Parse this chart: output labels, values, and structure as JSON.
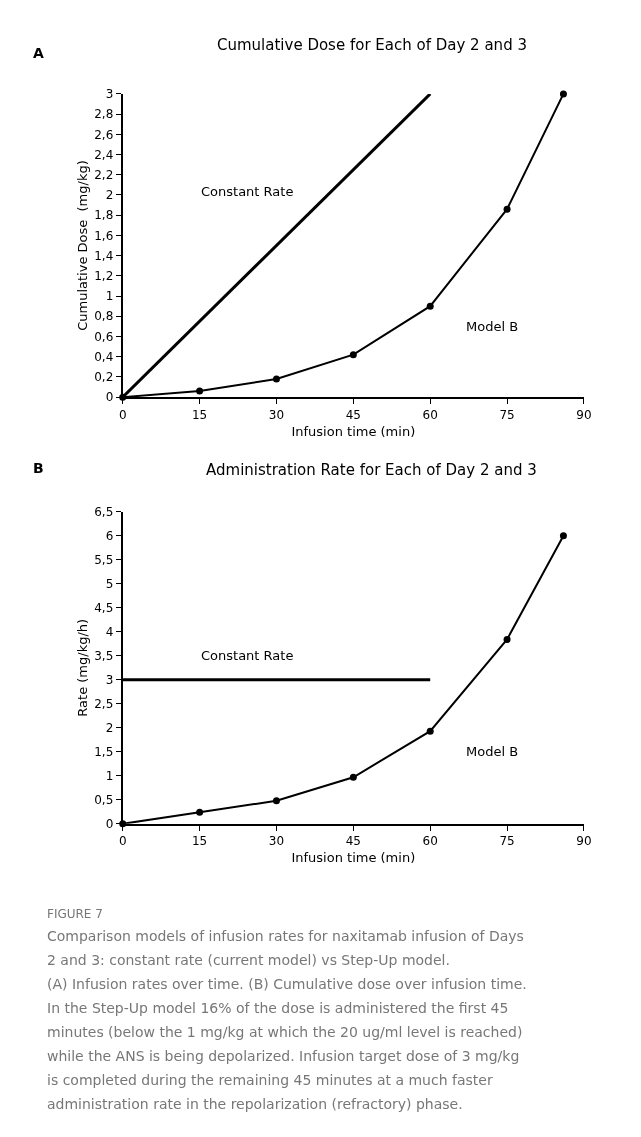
{
  "chart_data": [
    {
      "type": "line",
      "title": "Cumulative Dose for Each of Day 2 and 3",
      "xlabel": "Infusion time (min)",
      "ylabel": "Cumulative Dose  (mg/kg)",
      "annotations": [
        "A"
      ],
      "series": [
        {
          "name": "Constant Rate",
          "color": "#000000",
          "x": [
            0,
            60
          ],
          "values": [
            0,
            3
          ],
          "marker": "none"
        },
        {
          "name": "Model B",
          "color": "#000000",
          "x": [
            0,
            15,
            30,
            45,
            60,
            75,
            86
          ],
          "values": [
            0,
            0.06,
            0.18,
            0.42,
            0.9,
            1.86,
            3
          ],
          "marker": "circle"
        }
      ],
      "xlim": [
        0,
        90
      ],
      "xticks": [
        0,
        15,
        30,
        45,
        60,
        75,
        90
      ],
      "ylim": [
        0,
        3
      ],
      "yticks": [
        0,
        {
          "value": 0.2,
          "label": "0,2"
        },
        {
          "value": 0.4,
          "label": "0,4"
        },
        {
          "value": 0.6,
          "label": "0,6"
        },
        {
          "value": 0.8,
          "label": "0,8"
        },
        1,
        {
          "value": 1.2,
          "label": "1,2"
        },
        {
          "value": 1.4,
          "label": "1,4"
        },
        {
          "value": 1.6,
          "label": "1,6"
        },
        {
          "value": 1.8,
          "label": "1,8"
        },
        2,
        {
          "value": 2.2,
          "label": "2,2"
        },
        {
          "value": 2.4,
          "label": "2,4"
        },
        {
          "value": 2.6,
          "label": "2,6"
        },
        {
          "value": 2.8,
          "label": "2,8"
        },
        3
      ],
      "line_style": "solid"
    },
    {
      "type": "line",
      "title": "Administration Rate for Each of Day 2 and 3",
      "xlabel": "Infusion time (min)",
      "ylabel": "Rate (mg/kg/h)",
      "annotations": [
        "B",
        "FIGURE 7",
        "Comparison models of infusion rates for naxitamab infusion of Days",
        "2 and 3: constant rate (current model) vs Step-Up model.",
        "(A) Infusion rates over time. (B) Cumulative dose over infusion time.",
        "In the Step-Up model 16% of the dose is administered the first 45",
        "minutes (below the 1 mg/kg at which the 20 ug/ml level is reached)",
        "while the ANS is being depolarized. Infusion target dose of 3 mg/kg",
        "is completed during the remaining 45 minutes at a much faster",
        "administration rate in the repolarization (refractory) phase."
      ],
      "series": [
        {
          "name": "Constant Rate",
          "color": "#000000",
          "x": [
            0,
            60
          ],
          "values": [
            3,
            3
          ],
          "marker": "none"
        },
        {
          "name": "Model B",
          "color": "#000000",
          "x": [
            0,
            15,
            30,
            45,
            60,
            75,
            86
          ],
          "values": [
            0,
            0.24,
            0.48,
            0.97,
            1.93,
            3.84,
            6.0
          ],
          "marker": "circle"
        }
      ],
      "xlim": [
        0,
        90
      ],
      "xticks": [
        0,
        15,
        30,
        45,
        60,
        75,
        90
      ],
      "ylim": [
        0,
        6.5
      ],
      "yticks": [
        0,
        {
          "value": 0.5,
          "label": "0,5"
        },
        1,
        {
          "value": 1.5,
          "label": "1,5"
        },
        2,
        {
          "value": 2.5,
          "label": "2,5"
        },
        3,
        {
          "value": 3.5,
          "label": "3,5"
        },
        4,
        {
          "value": 4.5,
          "label": "4,5"
        },
        5,
        {
          "value": 5.5,
          "label": "5,5"
        },
        6,
        {
          "value": 6.5,
          "label": "6,5"
        }
      ],
      "line_style": "solid"
    }
  ]
}
